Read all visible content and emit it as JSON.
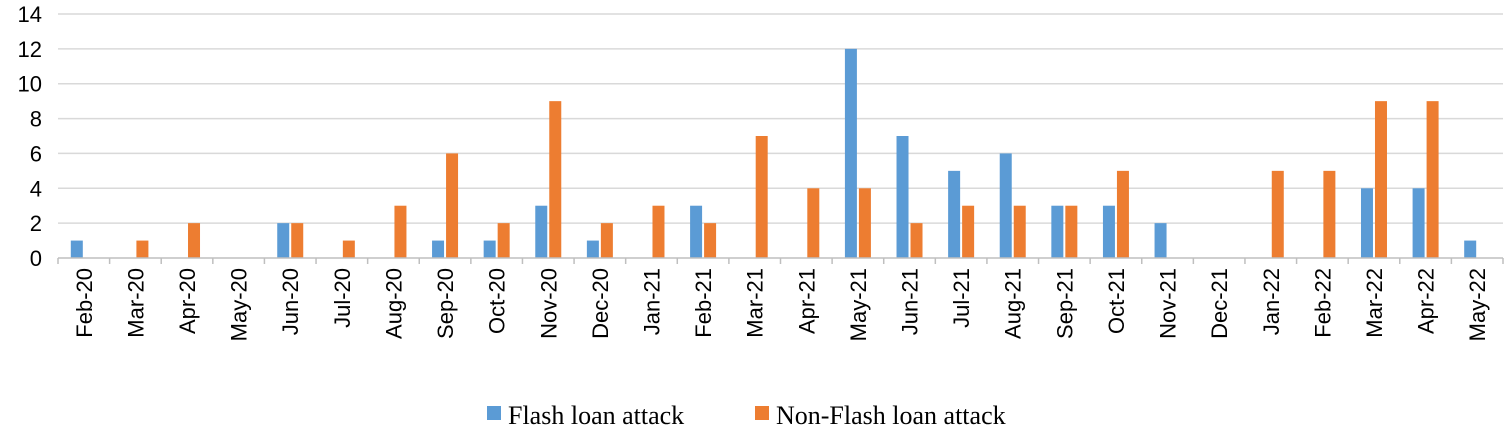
{
  "chart_data": {
    "type": "bar",
    "categories": [
      "Feb-20",
      "Mar-20",
      "Apr-20",
      "May-20",
      "Jun-20",
      "Jul-20",
      "Aug-20",
      "Sep-20",
      "Oct-20",
      "Nov-20",
      "Dec-20",
      "Jan-21",
      "Feb-21",
      "Mar-21",
      "Apr-21",
      "May-21",
      "Jun-21",
      "Jul-21",
      "Aug-21",
      "Sep-21",
      "Oct-21",
      "Nov-21",
      "Dec-21",
      "Jan-22",
      "Feb-22",
      "Mar-22",
      "Apr-22",
      "May-22"
    ],
    "series": [
      {
        "name": "Flash loan attack",
        "color": "#5b9bd5",
        "values": [
          1,
          0,
          0,
          0,
          2,
          0,
          0,
          1,
          1,
          3,
          1,
          0,
          3,
          0,
          0,
          12,
          7,
          5,
          6,
          3,
          3,
          2,
          0,
          0,
          0,
          4,
          4,
          1
        ]
      },
      {
        "name": "Non-Flash loan attack",
        "color": "#ed7d31",
        "values": [
          0,
          1,
          2,
          0,
          2,
          1,
          3,
          6,
          2,
          9,
          2,
          3,
          2,
          7,
          4,
          4,
          2,
          3,
          3,
          3,
          5,
          0,
          0,
          5,
          5,
          9,
          9,
          0
        ]
      }
    ],
    "yticks": [
      "0",
      "2",
      "4",
      "6",
      "8",
      "10",
      "12",
      "14"
    ],
    "ylim": [
      0,
      14
    ],
    "grid": true,
    "legend": "bottom-center",
    "title": "",
    "xlabel": "",
    "ylabel": ""
  }
}
